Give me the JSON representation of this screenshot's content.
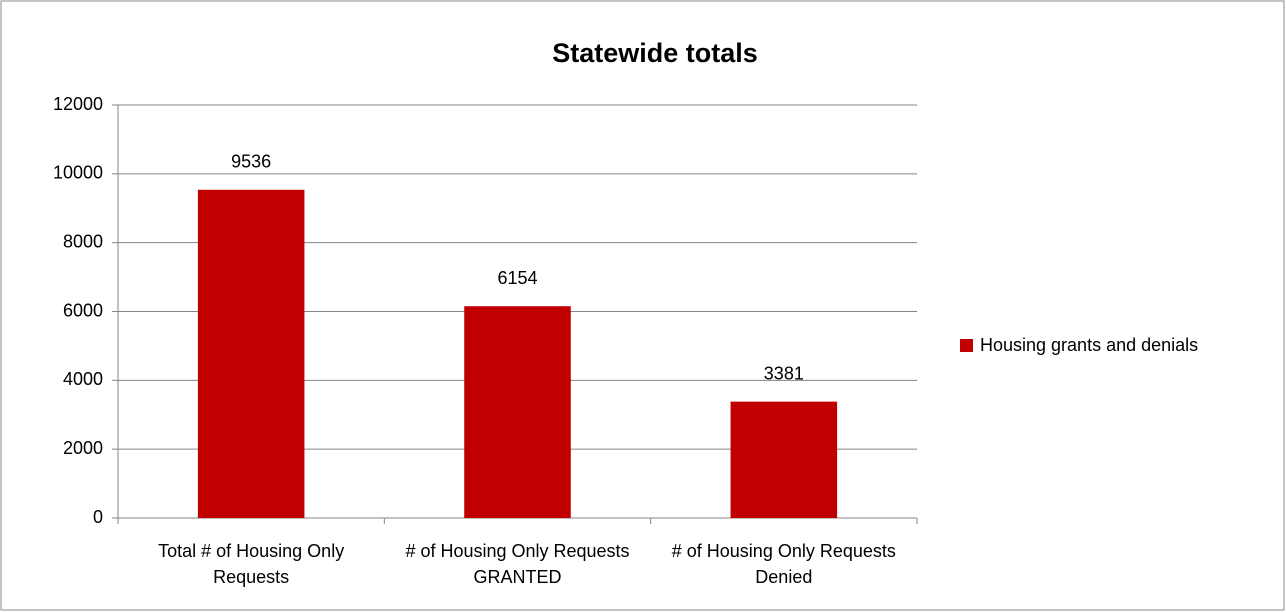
{
  "chart_data": {
    "type": "bar",
    "title": "Statewide totals",
    "categories": [
      "Total # of Housing Only Requests",
      "# of Housing Only Requests GRANTED",
      "# of Housing Only Requests Denied"
    ],
    "series": [
      {
        "name": "Housing grants and denials",
        "color": "#c00000",
        "values": [
          9536,
          6154,
          3381
        ]
      }
    ],
    "ylim": [
      0,
      12000
    ],
    "yticks": [
      0,
      2000,
      4000,
      6000,
      8000,
      10000,
      12000
    ],
    "grid": true,
    "legend": "right"
  }
}
